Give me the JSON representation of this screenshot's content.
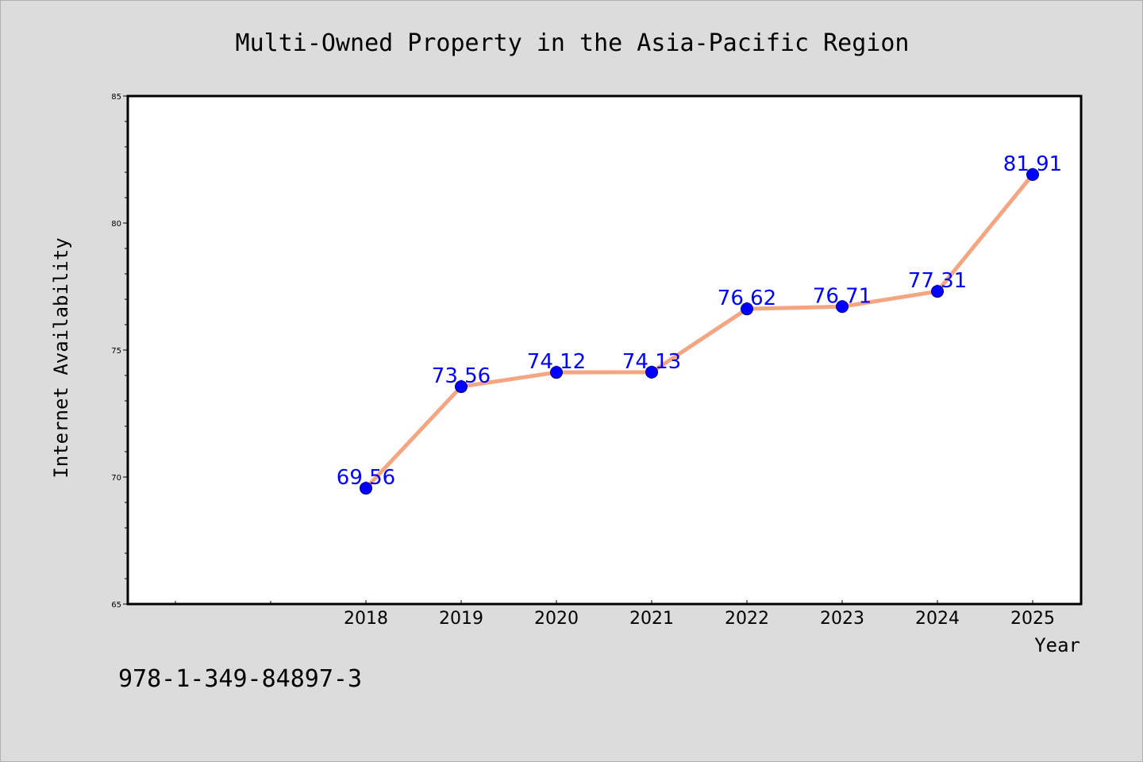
{
  "chart_data": {
    "type": "line",
    "title": "Multi-Owned Property in the Asia-Pacific Region",
    "xlabel": "Year",
    "ylabel": "Internet Availability",
    "x": [
      "2018",
      "2019",
      "2020",
      "2021",
      "2022",
      "2023",
      "2024",
      "2025"
    ],
    "values": [
      69.56,
      73.56,
      74.12,
      74.13,
      76.62,
      76.71,
      77.31,
      81.91
    ],
    "data_labels": [
      "69.56",
      "73.56",
      "74.12",
      "74.13",
      "76.62",
      "76.71",
      "77.31",
      "81.91"
    ],
    "ylim": [
      65,
      85
    ],
    "yticks": [
      "65",
      "70",
      "75",
      "80",
      "85"
    ],
    "grid": false,
    "line_color": "#f4a582",
    "marker_color": "#0000ff",
    "label_color": "#0000ff",
    "plot_background": "#ffffff",
    "figure_background": "#dcdcdc"
  },
  "footer_text": "978-1-349-84897-3"
}
